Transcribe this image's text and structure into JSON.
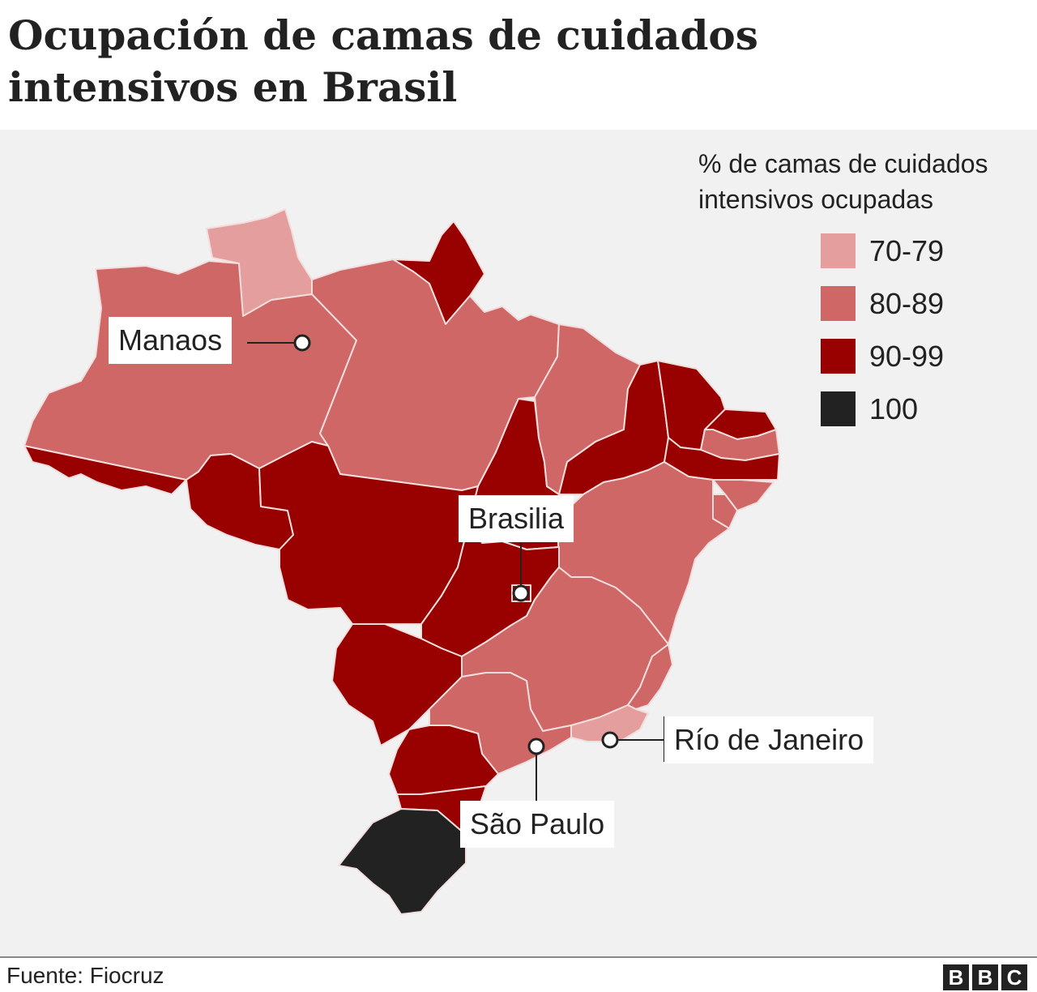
{
  "title": "Ocupación de camas de cuidados intensivos en Brasil",
  "legend": {
    "title": "% de camas de cuidados intensivos ocupadas",
    "items": [
      {
        "label": "70-79",
        "color": "#e59e9e"
      },
      {
        "label": "80-89",
        "color": "#d06767"
      },
      {
        "label": "90-99",
        "color": "#990000"
      },
      {
        "label": "100",
        "color": "#222222"
      }
    ]
  },
  "cities": {
    "manaos": "Manaos",
    "brasilia": "Brasilia",
    "rio": "Río de Janeiro",
    "sao_paulo": "São Paulo"
  },
  "source": "Fuente: Fiocruz",
  "logo": [
    "B",
    "B",
    "C"
  ],
  "colors": {
    "background": "#f1f1f1",
    "border": "#f3dede"
  }
}
